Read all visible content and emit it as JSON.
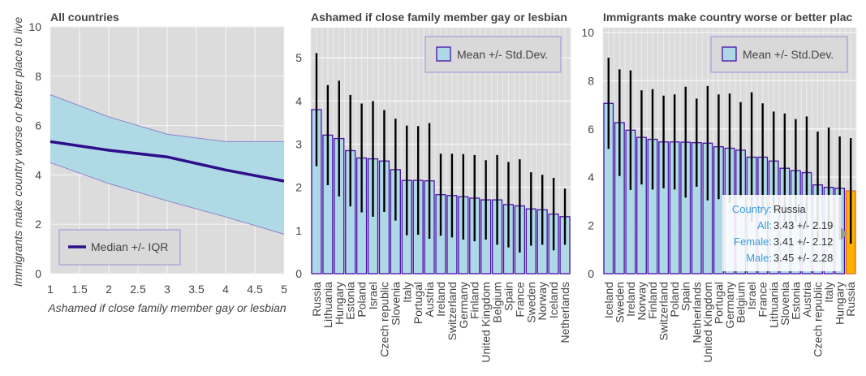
{
  "chart_data": [
    {
      "type": "line",
      "title": "All countries",
      "xlabel": "Ashamed if close family member gay or lesbian",
      "ylabel": "Immigrants make country worse or better place to live",
      "xlim": [
        1,
        5
      ],
      "ylim": [
        0,
        10
      ],
      "xticks": [
        "1",
        "1.5",
        "2",
        "2.5",
        "3",
        "3.5",
        "4",
        "4.5",
        "5"
      ],
      "yticks": [
        "0",
        "2",
        "4",
        "6",
        "8",
        "10"
      ],
      "grid": true,
      "legend": {
        "label": "Median +/- IQR",
        "placement": "bottom-left"
      },
      "x": [
        1,
        2,
        3,
        4,
        5
      ],
      "series": [
        {
          "name": "Median",
          "values": [
            5.35,
            5.0,
            4.73,
            4.2,
            3.75
          ]
        },
        {
          "name": "Upper quartile",
          "values": [
            7.25,
            6.35,
            5.65,
            5.35,
            5.35
          ]
        },
        {
          "name": "Lower quartile",
          "values": [
            4.5,
            3.65,
            2.95,
            2.3,
            1.6
          ]
        }
      ],
      "colors": {
        "median": "#2e0f8a",
        "band": "#add8e6",
        "band_edge": "#8c84cc",
        "plot_bg": "#dcdcdc"
      }
    },
    {
      "type": "bar",
      "title": "Ashamed if close family member gay or lesbian",
      "ylim": [
        0,
        5.7
      ],
      "yticks": [
        "0",
        "1",
        "2",
        "3",
        "4",
        "5"
      ],
      "grid": true,
      "legend": {
        "label": "Mean +/- Std.Dev.",
        "placement": "top-right"
      },
      "categories": [
        "Russia",
        "Lithuania",
        "Hungary",
        "Estonia",
        "Poland",
        "Israel",
        "Czech republic",
        "Slovenia",
        "Italy",
        "Portugal",
        "Austria",
        "Ireland",
        "Switzerland",
        "Germany",
        "Finland",
        "United Kingdom",
        "Belgium",
        "Spain",
        "France",
        "Sweden",
        "Norway",
        "Iceland",
        "Netherlands"
      ],
      "values": [
        3.8,
        3.21,
        3.13,
        2.85,
        2.68,
        2.66,
        2.61,
        2.41,
        2.16,
        2.16,
        2.15,
        1.83,
        1.81,
        1.78,
        1.75,
        1.71,
        1.71,
        1.6,
        1.57,
        1.5,
        1.48,
        1.38,
        1.32
      ],
      "errors": [
        1.31,
        1.16,
        1.34,
        1.29,
        1.26,
        1.34,
        1.18,
        1.18,
        1.27,
        1.26,
        1.34,
        0.95,
        0.97,
        0.99,
        1.0,
        0.92,
        1.04,
        0.99,
        1.08,
        0.85,
        0.81,
        0.84,
        0.65
      ],
      "colors": {
        "bar": "#add8e6",
        "bar_edge": "#4b0fa8",
        "error": "#000000",
        "plot_bg": "#dcdcdc"
      }
    },
    {
      "type": "bar",
      "title": "Immigrants make country worse or better plac",
      "ylim": [
        0,
        10.2
      ],
      "yticks": [
        "0",
        "2",
        "4",
        "6",
        "8",
        "10"
      ],
      "grid": true,
      "legend": {
        "label": "Mean +/- Std.Dev.",
        "placement": "top-right"
      },
      "categories": [
        "Iceland",
        "Sweden",
        "Ireland",
        "Norway",
        "Finland",
        "Switzerland",
        "Poland",
        "Spain",
        "Netherlands",
        "United Kingdom",
        "Portugal",
        "Germany",
        "Belgium",
        "Israel",
        "France",
        "Lithuania",
        "Slovenia",
        "Estonia",
        "Austria",
        "Czech republic",
        "Italy",
        "Hungary",
        "Russia"
      ],
      "values": [
        7.06,
        6.26,
        5.95,
        5.65,
        5.57,
        5.46,
        5.46,
        5.45,
        5.43,
        5.41,
        5.26,
        5.2,
        5.12,
        4.83,
        4.83,
        4.67,
        4.37,
        4.27,
        4.19,
        3.68,
        3.58,
        3.54,
        3.43
      ],
      "errors": [
        1.89,
        2.21,
        2.48,
        1.95,
        2.08,
        1.92,
        1.97,
        2.3,
        1.83,
        2.37,
        2.17,
        2.27,
        1.99,
        2.69,
        2.23,
        2.05,
        2.27,
        2.14,
        2.33,
        2.21,
        2.48,
        2.15,
        2.19
      ],
      "highlighted": "Russia",
      "colors": {
        "bar": "#add8e6",
        "bar_edge": "#4b0fa8",
        "highlight": "#ffb000",
        "highlight_edge": "#e06c20",
        "error": "#000000",
        "plot_bg": "#dcdcdc"
      }
    }
  ],
  "tooltip": {
    "rows": [
      {
        "key": "Country:",
        "value": "Russia"
      },
      {
        "key": "All:",
        "value": "3.43 +/- 2.19"
      },
      {
        "key": "Female:",
        "value": "3.41 +/- 2.12"
      },
      {
        "key": "Male:",
        "value": "3.45 +/- 2.28"
      }
    ]
  }
}
